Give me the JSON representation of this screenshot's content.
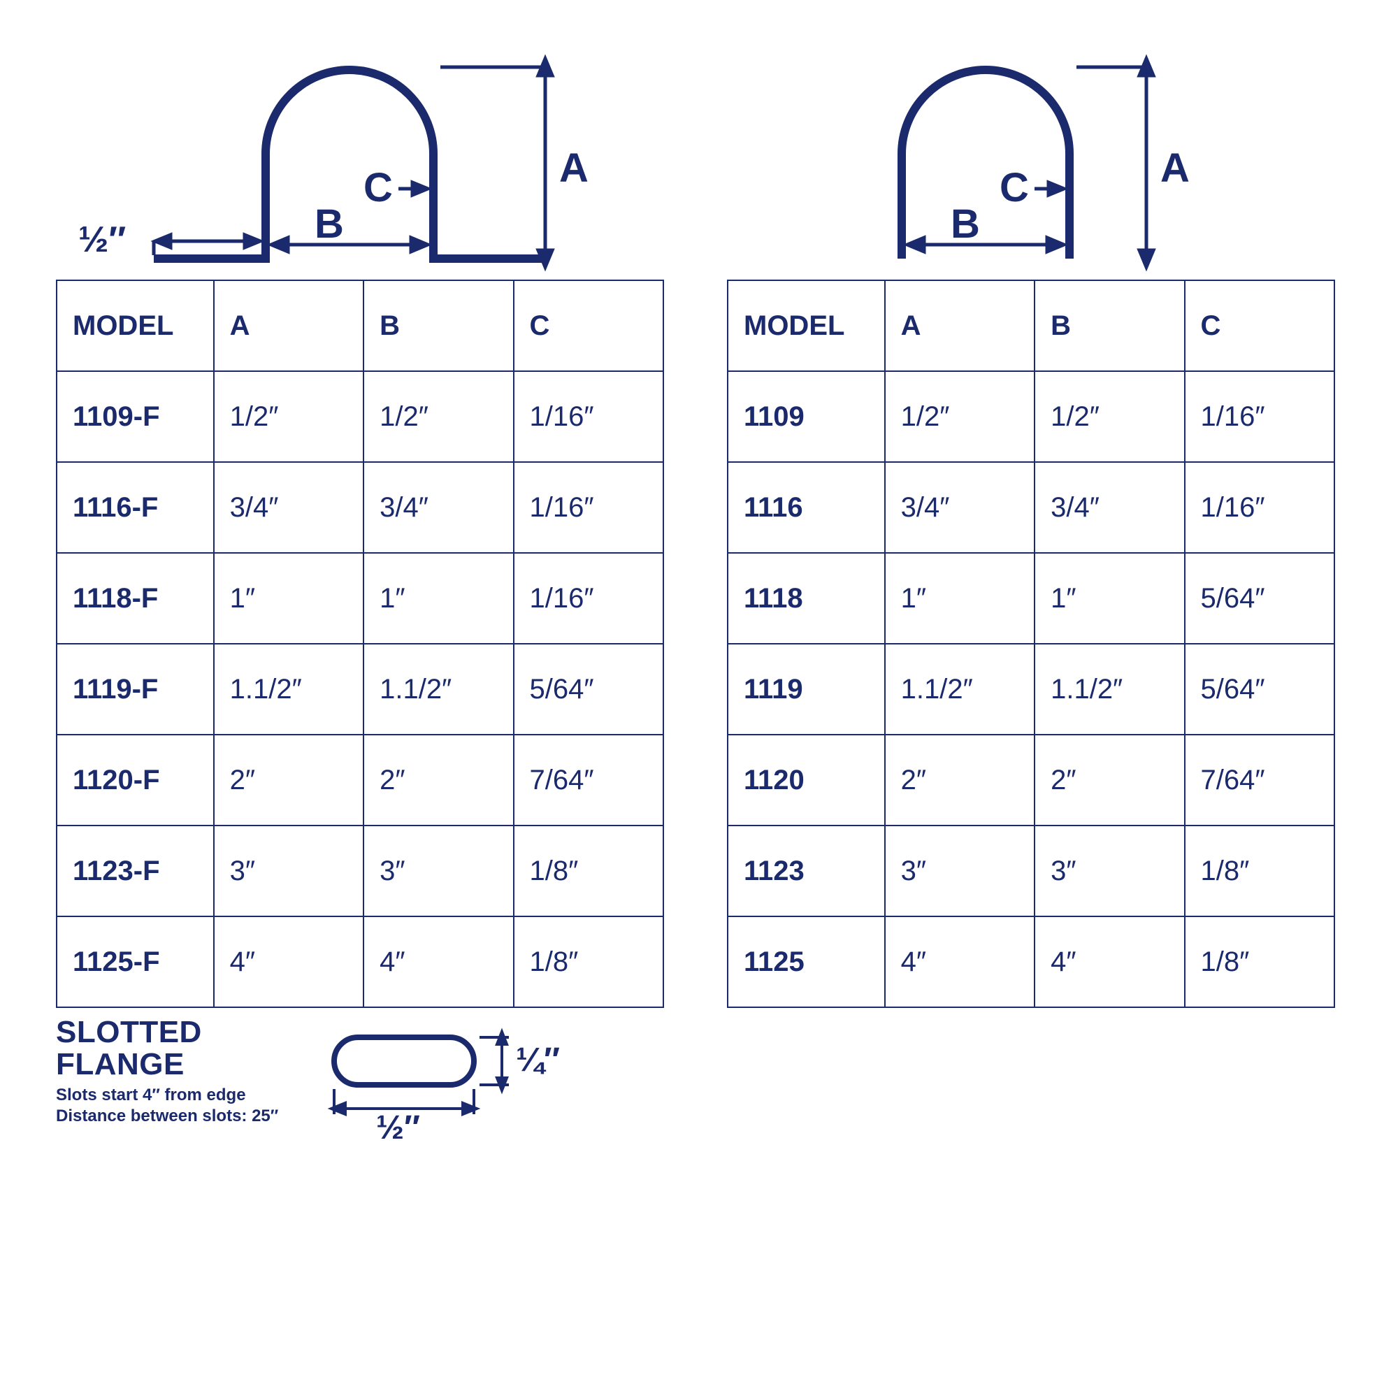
{
  "colors": {
    "stroke": "#1a2a6c",
    "text": "#1a2a6c",
    "background": "#ffffff"
  },
  "diagram_left": {
    "flange_label": "½″",
    "label_A": "A",
    "label_B": "B",
    "label_C": "C",
    "stroke_width": 12,
    "dim_stroke_width": 5
  },
  "diagram_right": {
    "label_A": "A",
    "label_B": "B",
    "label_C": "C",
    "stroke_width": 12,
    "dim_stroke_width": 5
  },
  "table_left": {
    "columns": [
      "MODEL",
      "A",
      "B",
      "C"
    ],
    "rows": [
      [
        "1109-F",
        "1/2″",
        "1/2″",
        "1/16″"
      ],
      [
        "1116-F",
        "3/4″",
        "3/4″",
        "1/16″"
      ],
      [
        "1118-F",
        "1″",
        "1″",
        "1/16″"
      ],
      [
        "1119-F",
        "1.1/2″",
        "1.1/2″",
        "5/64″"
      ],
      [
        "1120-F",
        "2″",
        "2″",
        "7/64″"
      ],
      [
        "1123-F",
        "3″",
        "3″",
        "1/8″"
      ],
      [
        "1125-F",
        "4″",
        "4″",
        "1/8″"
      ]
    ]
  },
  "table_right": {
    "columns": [
      "MODEL",
      "A",
      "B",
      "C"
    ],
    "rows": [
      [
        "1109",
        "1/2″",
        "1/2″",
        "1/16″"
      ],
      [
        "1116",
        "3/4″",
        "3/4″",
        "1/16″"
      ],
      [
        "1118",
        "1″",
        "1″",
        "5/64″"
      ],
      [
        "1119",
        "1.1/2″",
        "1.1/2″",
        "5/64″"
      ],
      [
        "1120",
        "2″",
        "2″",
        "7/64″"
      ],
      [
        "1123",
        "3″",
        "3″",
        "1/8″"
      ],
      [
        "1125",
        "4″",
        "4″",
        "1/8″"
      ]
    ]
  },
  "slotted_flange": {
    "title_line1": "SLOTTED",
    "title_line2": "FLANGE",
    "sub_line1": "Slots start 4″ from edge",
    "sub_line2": "Distance between slots: 25″",
    "slot_width_label": "½″",
    "slot_height_label": "¼″",
    "stroke_width": 8,
    "dim_stroke_width": 4
  }
}
